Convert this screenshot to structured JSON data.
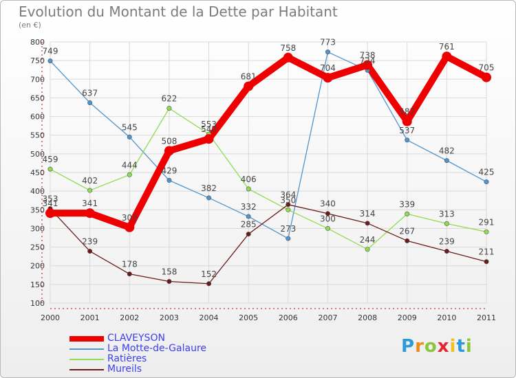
{
  "chart_data": {
    "type": "line",
    "title": "Evolution du Montant de la Dette par Habitant",
    "subtitle": "(en €)",
    "categories": [
      "2000",
      "2001",
      "2002",
      "2003",
      "2004",
      "2005",
      "2006",
      "2007",
      "2008",
      "2009",
      "2010",
      "2011"
    ],
    "ylim": [
      100,
      800
    ],
    "yticks": [
      100,
      150,
      200,
      250,
      300,
      350,
      400,
      450,
      500,
      550,
      600,
      650,
      700,
      750,
      800
    ],
    "grid": true,
    "legend_position": "bottom-left",
    "series": [
      {
        "name": "CLAVEYSON",
        "color": "#ee0000",
        "values": [
          341,
          341,
          303,
          508,
          540,
          681,
          758,
          704,
          738,
          587,
          761,
          705
        ],
        "labels": [
          "341",
          "341",
          "303",
          "508",
          "540",
          "681",
          "758",
          "704",
          "738",
          "587",
          "761",
          "705"
        ]
      },
      {
        "name": "La Motte-de-Galaure",
        "color": "#4f94cd",
        "values": [
          749,
          637,
          545,
          429,
          382,
          332,
          273,
          773,
          724,
          537,
          482,
          425
        ],
        "labels": [
          "749",
          "637",
          "545",
          "429",
          "382",
          "332",
          "273",
          "773",
          "724",
          "537",
          "482",
          "425"
        ]
      },
      {
        "name": "Ratières",
        "color": "#90dc50",
        "values": [
          459,
          402,
          444,
          622,
          553,
          406,
          350,
          300,
          244,
          339,
          313,
          291
        ],
        "labels": [
          "459",
          "402",
          "444",
          "622",
          "553",
          "406",
          "350",
          "300",
          "244",
          "339",
          "313",
          "291"
        ]
      },
      {
        "name": "Mureils",
        "color": "#6b1a1a",
        "values": [
          353,
          239,
          178,
          158,
          152,
          285,
          364,
          340,
          314,
          267,
          239,
          211
        ],
        "labels": [
          "353",
          "239",
          "178",
          "158",
          "152",
          "285",
          "364",
          "340",
          "314",
          "267",
          "239",
          "211"
        ]
      }
    ]
  },
  "logo": {
    "letters": [
      "P",
      "r",
      "o",
      "x",
      "i",
      "t",
      "i"
    ],
    "colors": [
      "#2a9ad8",
      "#f08a1c",
      "#8cc43c",
      "#e8242a",
      "#f0c21c",
      "#2a9ad8",
      "#8cc43c"
    ]
  }
}
